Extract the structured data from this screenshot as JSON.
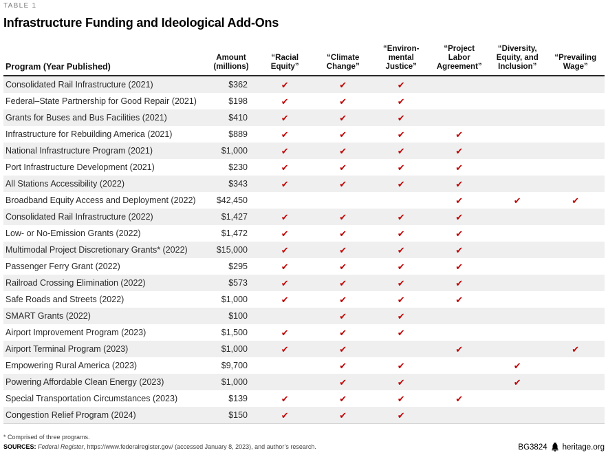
{
  "page": {
    "eyebrow": "TABLE 1",
    "title": "Infrastructure Funding and Ideological Add-Ons"
  },
  "chart_data": {
    "type": "table",
    "title": "Infrastructure Funding and Ideological Add-Ons",
    "program_header": "Program (Year Published)",
    "check_glyph": "✔",
    "columns": [
      {
        "key": "amount",
        "type": "amount",
        "label": "Amount\n(millions)"
      },
      {
        "key": "racial-equity",
        "type": "check",
        "label": "“Racial\nEquity”"
      },
      {
        "key": "climate-change",
        "type": "check",
        "label": "“Climate\nChange”"
      },
      {
        "key": "environmental-justice",
        "type": "check",
        "label": "“Environ-\nmental\nJustice”"
      },
      {
        "key": "project-labor-agreement",
        "type": "check",
        "label": "“Project\nLabor\nAgreement”"
      },
      {
        "key": "diversity-equity-inclusion",
        "type": "check",
        "label": "“Diversity,\nEquity, and\nInclusion”"
      },
      {
        "key": "prevailing-wage",
        "type": "check",
        "label": "“Prevailing\nWage”"
      }
    ],
    "rows": [
      {
        "program": "Consolidated Rail Infrastructure (2021)",
        "amount": "$362",
        "checks": [
          true,
          true,
          true,
          false,
          false,
          false
        ]
      },
      {
        "program": "Federal–State Partnership for Good Repair (2021)",
        "amount": "$198",
        "checks": [
          true,
          true,
          true,
          false,
          false,
          false
        ]
      },
      {
        "program": "Grants for Buses and Bus Facilities (2021)",
        "amount": "$410",
        "checks": [
          true,
          true,
          true,
          false,
          false,
          false
        ]
      },
      {
        "program": "Infrastructure for Rebuilding America (2021)",
        "amount": "$889",
        "checks": [
          true,
          true,
          true,
          true,
          false,
          false
        ]
      },
      {
        "program": "National Infrastructure Program (2021)",
        "amount": "$1,000",
        "checks": [
          true,
          true,
          true,
          true,
          false,
          false
        ]
      },
      {
        "program": "Port Infrastructure Development (2021)",
        "amount": "$230",
        "checks": [
          true,
          true,
          true,
          true,
          false,
          false
        ]
      },
      {
        "program": "All Stations Accessibility (2022)",
        "amount": "$343",
        "checks": [
          true,
          true,
          true,
          true,
          false,
          false
        ]
      },
      {
        "program": "Broadband Equity Access and Deployment (2022)",
        "amount": "$42,450",
        "checks": [
          false,
          false,
          false,
          true,
          true,
          true
        ]
      },
      {
        "program": "Consolidated Rail Infrastructure (2022)",
        "amount": "$1,427",
        "checks": [
          true,
          true,
          true,
          true,
          false,
          false
        ]
      },
      {
        "program": "Low- or No-Emission Grants (2022)",
        "amount": "$1,472",
        "checks": [
          true,
          true,
          true,
          true,
          false,
          false
        ]
      },
      {
        "program": "Multimodal Project Discretionary Grants* (2022)",
        "amount": "$15,000",
        "checks": [
          true,
          true,
          true,
          true,
          false,
          false
        ]
      },
      {
        "program": "Passenger Ferry Grant (2022)",
        "amount": "$295",
        "checks": [
          true,
          true,
          true,
          true,
          false,
          false
        ]
      },
      {
        "program": "Railroad Crossing Elimination (2022)",
        "amount": "$573",
        "checks": [
          true,
          true,
          true,
          true,
          false,
          false
        ]
      },
      {
        "program": "Safe Roads and Streets (2022)",
        "amount": "$1,000",
        "checks": [
          true,
          true,
          true,
          true,
          false,
          false
        ]
      },
      {
        "program": "SMART Grants (2022)",
        "amount": "$100",
        "checks": [
          false,
          true,
          true,
          false,
          false,
          false
        ]
      },
      {
        "program": "Airport Improvement Program (2023)",
        "amount": "$1,500",
        "checks": [
          true,
          true,
          true,
          false,
          false,
          false
        ]
      },
      {
        "program": "Airport Terminal Program (2023)",
        "amount": "$1,000",
        "checks": [
          true,
          true,
          false,
          true,
          false,
          true
        ]
      },
      {
        "program": "Empowering Rural America (2023)",
        "amount": "$9,700",
        "checks": [
          false,
          true,
          true,
          false,
          true,
          false
        ]
      },
      {
        "program": "Powering Affordable Clean Energy (2023)",
        "amount": "$1,000",
        "checks": [
          false,
          true,
          true,
          false,
          true,
          false
        ]
      },
      {
        "program": "Special Transportation Circumstances (2023)",
        "amount": "$139",
        "checks": [
          true,
          true,
          true,
          true,
          false,
          false
        ]
      },
      {
        "program": "Congestion Relief Program (2024)",
        "amount": "$150",
        "checks": [
          true,
          true,
          true,
          false,
          false,
          false
        ]
      }
    ]
  },
  "footnotes": {
    "note": "* Comprised of three programs.",
    "sources_label": "SOURCES: ",
    "sources_italic": "Federal Register",
    "sources_rest": ", https://www.federalregister.gov/ (accessed January 8, 2023), and author’s research."
  },
  "footer": {
    "doc_id": "BG3824",
    "site": "heritage.org"
  },
  "colors": {
    "check_red": "#c00000",
    "stripe": "#efefef",
    "header_rule": "#282828"
  }
}
